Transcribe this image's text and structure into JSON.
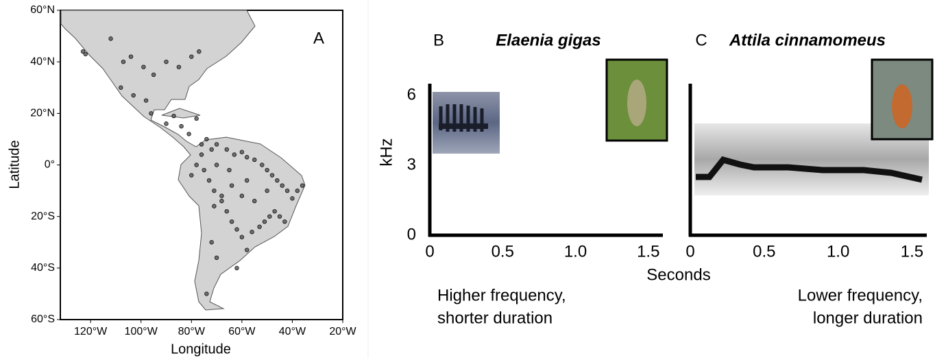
{
  "panel_a": {
    "label": "A",
    "x_label": "Longitude",
    "y_label": "Latitude",
    "xlim": [
      -132,
      -20
    ],
    "ylim": [
      -60,
      60
    ],
    "xticks": [
      {
        "value": -120,
        "label": "120°W"
      },
      {
        "value": -100,
        "label": "100°W"
      },
      {
        "value": -80,
        "label": "80°W"
      },
      {
        "value": -60,
        "label": "60°W"
      },
      {
        "value": -40,
        "label": "40°W"
      },
      {
        "value": -20,
        "label": "20°W"
      }
    ],
    "yticks": [
      {
        "value": 60,
        "label": "60°N"
      },
      {
        "value": 40,
        "label": "40°N"
      },
      {
        "value": 20,
        "label": "20°N"
      },
      {
        "value": 0,
        "label": "0°"
      },
      {
        "value": -20,
        "label": "20°S"
      },
      {
        "value": -40,
        "label": "40°S"
      },
      {
        "value": -60,
        "label": "60°S"
      }
    ],
    "lon": [
      -123,
      -122,
      -112,
      -107,
      -104,
      -99,
      -95,
      -90,
      -85,
      -80,
      -77,
      -108,
      -103,
      -98,
      -96,
      -90,
      -87,
      -84,
      -81,
      -78,
      -76,
      -74,
      -72,
      -70,
      -66,
      -63,
      -60,
      -58,
      -55,
      -52,
      -50,
      -48,
      -46,
      -44,
      -42,
      -40,
      -47,
      -49,
      -51,
      -53,
      -56,
      -60,
      -62,
      -64,
      -66,
      -68,
      -71,
      -73,
      -75,
      -78,
      -80,
      -76,
      -70,
      -65,
      -58,
      -50,
      -45,
      -43,
      -38,
      -36,
      -55,
      -60,
      -64,
      -68,
      -71,
      -72,
      -70,
      -58,
      -62,
      -74
    ],
    "lat": [
      44,
      43,
      49,
      40,
      42,
      38,
      35,
      40,
      38,
      42,
      44,
      30,
      27,
      25,
      20,
      16,
      19,
      15,
      12,
      18,
      8,
      10,
      6,
      8,
      6,
      4,
      5,
      3,
      2,
      0,
      -2,
      -4,
      -6,
      -8,
      -10,
      -13,
      -18,
      -20,
      -22,
      -24,
      -26,
      -28,
      -25,
      -22,
      -18,
      -14,
      -10,
      -6,
      -2,
      0,
      -4,
      4,
      0,
      -2,
      -6,
      -10,
      -20,
      -22,
      -10,
      -8,
      -14,
      -12,
      -8,
      -12,
      -16,
      -30,
      -36,
      -33,
      -40,
      -50
    ]
  },
  "panel_b": {
    "label": "B",
    "species": "Elaenia gigas",
    "xlim": [
      0,
      1.6
    ],
    "ylim": [
      0,
      6.5
    ],
    "xticks": [
      0,
      0.5,
      {
        "value": 1,
        "label": "1.0"
      },
      1.5
    ],
    "yticks": [
      0,
      3,
      6
    ],
    "caption": [
      "Higher frequency,",
      "shorter duration"
    ]
  },
  "panel_c": {
    "label": "C",
    "species": "Attila cinnamomeus",
    "xlim": [
      0,
      1.6
    ],
    "ylim": [
      0,
      6.5
    ],
    "xticks": [
      0,
      0.5,
      {
        "value": 1,
        "label": "1.0"
      },
      1.5
    ],
    "caption": [
      "Lower frequency,",
      "longer duration"
    ]
  },
  "y_label": "kHz",
  "x_label": "Seconds"
}
